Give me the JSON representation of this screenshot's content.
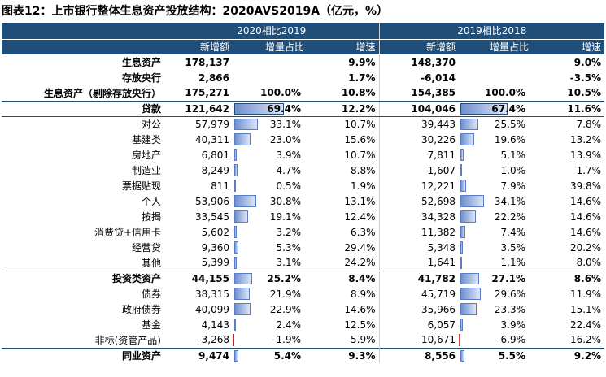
{
  "title": "图表12：上市银行整体生息资产投放结构：2020AVS2019A（亿元，%）",
  "groups": [
    "2020相比2019",
    "2019相比2018"
  ],
  "columns": [
    "新增额",
    "增量占比",
    "增速",
    "新增额",
    "增量占比",
    "增速"
  ],
  "rows": [
    {
      "label": "生息资产",
      "indent": 0,
      "bold": true,
      "a": "178,137",
      "b": "",
      "bp": 0,
      "c": "9.9%",
      "d": "148,370",
      "e": "",
      "ep": 0,
      "f": "9.0%"
    },
    {
      "label": "存放央行",
      "indent": 0,
      "bold": true,
      "a": "2,866",
      "b": "",
      "bp": 0,
      "c": "1.7%",
      "d": "-6,014",
      "e": "",
      "ep": 0,
      "f": "-3.5%"
    },
    {
      "label": "生息资产（剔除存放央行）",
      "indent": 0,
      "bold": true,
      "line": true,
      "a": "175,271",
      "b": "100.0%",
      "bp": 0,
      "c": "10.8%",
      "d": "154,385",
      "e": "100.0%",
      "ep": 0,
      "f": "10.5%"
    },
    {
      "label": "贷款",
      "indent": 0,
      "bold": true,
      "line": true,
      "boxed": true,
      "a": "121,642",
      "b": "69.4%",
      "bp": 69.4,
      "c": "12.2%",
      "d": "104,046",
      "e": "67.4%",
      "ep": 67.4,
      "f": "11.6%"
    },
    {
      "label": "对公",
      "indent": 1,
      "a": "57,979",
      "b": "33.1%",
      "bp": 33.1,
      "c": "10.7%",
      "d": "39,443",
      "e": "25.5%",
      "ep": 25.5,
      "f": "7.8%"
    },
    {
      "label": "基建类",
      "indent": 3,
      "a": "40,311",
      "b": "23.0%",
      "bp": 23.0,
      "c": "15.6%",
      "d": "30,226",
      "e": "19.6%",
      "ep": 19.6,
      "f": "13.2%"
    },
    {
      "label": "房地产",
      "indent": 3,
      "a": "6,801",
      "b": "3.9%",
      "bp": 3.9,
      "c": "10.7%",
      "d": "7,811",
      "e": "5.1%",
      "ep": 5.1,
      "f": "13.9%"
    },
    {
      "label": "制造业",
      "indent": 3,
      "a": "8,249",
      "b": "4.7%",
      "bp": 4.7,
      "c": "8.8%",
      "d": "1,607",
      "e": "1.0%",
      "ep": 1.0,
      "f": "1.7%"
    },
    {
      "label": "票据贴现",
      "indent": 1,
      "a": "811",
      "b": "0.5%",
      "bp": 0.5,
      "c": "1.9%",
      "d": "12,221",
      "e": "7.9%",
      "ep": 7.9,
      "f": "39.8%"
    },
    {
      "label": "个人",
      "indent": 1,
      "a": "53,906",
      "b": "30.8%",
      "bp": 30.8,
      "c": "13.1%",
      "d": "52,698",
      "e": "34.1%",
      "ep": 34.1,
      "f": "14.6%"
    },
    {
      "label": "按揭",
      "indent": 2,
      "a": "33,545",
      "b": "19.1%",
      "bp": 19.1,
      "c": "12.4%",
      "d": "34,328",
      "e": "22.2%",
      "ep": 22.2,
      "f": "14.6%"
    },
    {
      "label": "消费贷+信用卡",
      "indent": 2,
      "a": "5,602",
      "b": "3.2%",
      "bp": 3.2,
      "c": "6.3%",
      "d": "11,382",
      "e": "7.4%",
      "ep": 7.4,
      "f": "14.6%"
    },
    {
      "label": "经营贷",
      "indent": 2,
      "a": "9,360",
      "b": "5.3%",
      "bp": 5.3,
      "c": "29.4%",
      "d": "5,348",
      "e": "3.5%",
      "ep": 3.5,
      "f": "20.2%"
    },
    {
      "label": "其他",
      "indent": 2,
      "a": "5,399",
      "b": "3.1%",
      "bp": 3.1,
      "c": "24.2%",
      "d": "1,641",
      "e": "1.1%",
      "ep": 1.1,
      "f": "8.0%"
    },
    {
      "label": "投资类资产",
      "indent": 0,
      "bold": true,
      "topline": true,
      "a": "44,155",
      "b": "25.2%",
      "bp": 25.2,
      "c": "8.4%",
      "d": "41,782",
      "e": "27.1%",
      "ep": 27.1,
      "f": "8.6%"
    },
    {
      "label": "债券",
      "indent": 1,
      "a": "38,315",
      "b": "21.9%",
      "bp": 21.9,
      "c": "8.9%",
      "d": "45,719",
      "e": "29.6%",
      "ep": 29.6,
      "f": "11.9%"
    },
    {
      "label": "政府债券",
      "indent": 2,
      "a": "40,099",
      "b": "22.9%",
      "bp": 22.9,
      "c": "14.6%",
      "d": "35,966",
      "e": "23.3%",
      "ep": 23.3,
      "f": "15.1%"
    },
    {
      "label": "基金",
      "indent": 1,
      "a": "4,143",
      "b": "2.4%",
      "bp": 2.4,
      "c": "12.5%",
      "d": "6,057",
      "e": "3.9%",
      "ep": 3.9,
      "f": "22.4%"
    },
    {
      "label": "非标(资管产品)",
      "indent": 1,
      "a": "-3,268",
      "b": "-1.9%",
      "bp": -1.9,
      "c": "-5.9%",
      "d": "-10,671",
      "e": "-6.9%",
      "ep": -6.9,
      "f": "-16.2%"
    },
    {
      "label": "同业资产",
      "indent": 0,
      "bold": true,
      "topline": true,
      "a": "9,474",
      "b": "5.4%",
      "bp": 5.4,
      "c": "9.3%",
      "d": "8,556",
      "e": "5.5%",
      "ep": 5.5,
      "f": "9.2%"
    }
  ]
}
